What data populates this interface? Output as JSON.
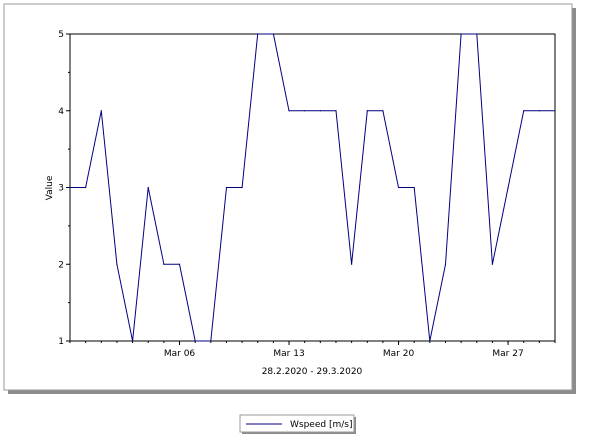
{
  "chart_data": {
    "type": "line",
    "xlabel": "28.2.2020 - 29.3.2020",
    "ylabel": "Value",
    "ylim": [
      1,
      5
    ],
    "yticks": [
      "1",
      "2",
      "3",
      "4",
      "5"
    ],
    "xlim": [
      "2020-02-28",
      "2020-03-30"
    ],
    "xticks": [
      {
        "date": "2020-03-06",
        "label": "Mar 06"
      },
      {
        "date": "2020-03-13",
        "label": "Mar 13"
      },
      {
        "date": "2020-03-20",
        "label": "Mar 20"
      },
      {
        "date": "2020-03-27",
        "label": "Mar 27"
      }
    ],
    "grid": false,
    "legend_position": "bottom-center",
    "series": [
      {
        "name": "Wspeed [m/s]",
        "color": "#000080",
        "x": [
          "2020-02-28",
          "2020-02-29",
          "2020-03-01",
          "2020-03-02",
          "2020-03-03",
          "2020-03-04",
          "2020-03-05",
          "2020-03-06",
          "2020-03-07",
          "2020-03-08",
          "2020-03-09",
          "2020-03-10",
          "2020-03-11",
          "2020-03-12",
          "2020-03-13",
          "2020-03-14",
          "2020-03-15",
          "2020-03-16",
          "2020-03-17",
          "2020-03-18",
          "2020-03-19",
          "2020-03-20",
          "2020-03-21",
          "2020-03-22",
          "2020-03-23",
          "2020-03-24",
          "2020-03-25",
          "2020-03-26",
          "2020-03-27",
          "2020-03-28",
          "2020-03-29",
          "2020-03-30"
        ],
        "y": [
          3,
          3,
          4,
          2,
          1,
          3,
          2,
          2,
          1,
          1,
          3,
          3,
          5,
          5,
          4,
          4,
          4,
          4,
          2,
          4,
          4,
          3,
          3,
          1,
          2,
          5,
          5,
          2,
          3,
          4,
          4,
          4
        ]
      }
    ]
  }
}
